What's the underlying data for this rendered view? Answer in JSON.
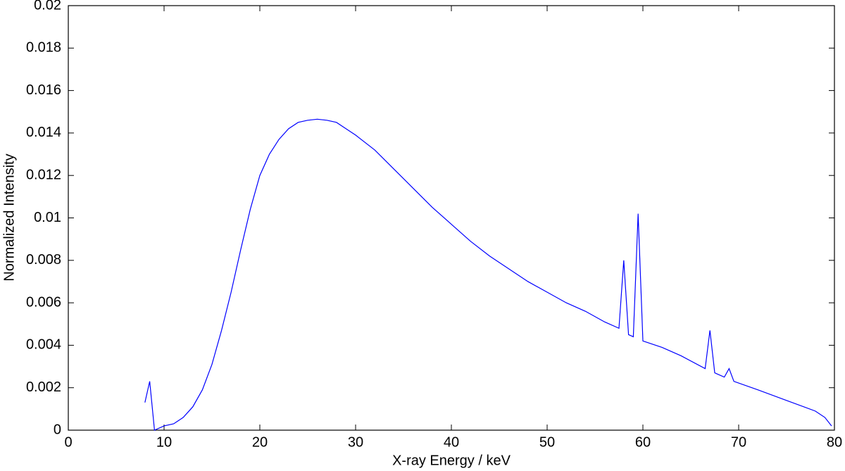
{
  "chart_data": {
    "type": "line",
    "x_label": "X-ray Energy / keV",
    "y_label": "Normalized Intensity",
    "xlim": [
      0,
      80
    ],
    "xticks": [
      0,
      10,
      20,
      30,
      40,
      50,
      60,
      70,
      80
    ],
    "ylim": [
      0,
      0.02
    ],
    "yticks": [
      0,
      0.002,
      0.004,
      0.006,
      0.008,
      0.01,
      0.012,
      0.014,
      0.016,
      0.018,
      0.02
    ],
    "grid": false,
    "series": [
      {
        "color": "#0000ff",
        "x": [
          8,
          8.5,
          9,
          10,
          11,
          12,
          13,
          14,
          15,
          16,
          17,
          18,
          19,
          20,
          21,
          22,
          23,
          24,
          25,
          26,
          27,
          28,
          29,
          30,
          32,
          34,
          36,
          38,
          40,
          42,
          44,
          46,
          48,
          50,
          52,
          54,
          56,
          57.5,
          58,
          58.5,
          59,
          59.5,
          60,
          62,
          64,
          66.5,
          67,
          67.5,
          68.5,
          69,
          69.5,
          72,
          75,
          78,
          79,
          79.7
        ],
        "values": [
          0.0013,
          0.0023,
          0,
          0.0002,
          0.0003,
          0.0006,
          0.0011,
          0.0019,
          0.0031,
          0.0047,
          0.0065,
          0.0085,
          0.0104,
          0.012,
          0.013,
          0.0137,
          0.0142,
          0.0145,
          0.0146,
          0.01465,
          0.0146,
          0.0145,
          0.0142,
          0.0139,
          0.0132,
          0.0123,
          0.0114,
          0.0105,
          0.0097,
          0.0089,
          0.0082,
          0.0076,
          0.007,
          0.0065,
          0.006,
          0.0056,
          0.0051,
          0.0048,
          0.008,
          0.0045,
          0.0044,
          0.0102,
          0.0042,
          0.0039,
          0.0035,
          0.0029,
          0.0047,
          0.0027,
          0.0025,
          0.0029,
          0.0023,
          0.0019,
          0.0014,
          0.0009,
          0.0006,
          0.0002
        ]
      }
    ]
  }
}
